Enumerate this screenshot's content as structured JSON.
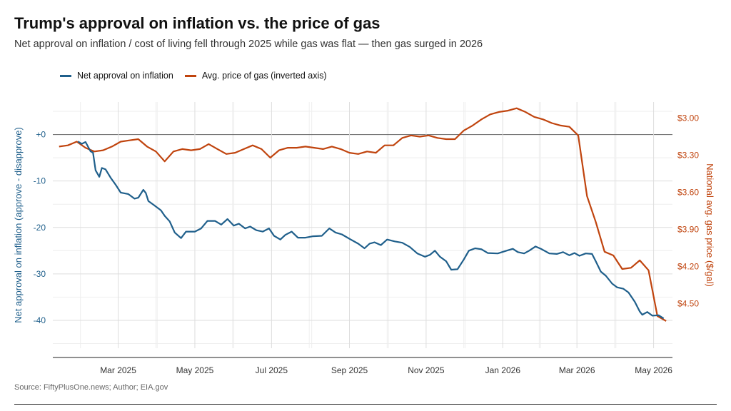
{
  "header": {
    "title": "Trump's approval on inflation vs. the price of gas",
    "subtitle": "Net approval on inflation / cost of living fell through 2025 while gas was flat — then gas surged in 2026"
  },
  "legend": {
    "items": [
      {
        "label": "Net approval on inflation",
        "color": "#1f5f8b"
      },
      {
        "label": "Avg. price of gas (inverted axis)",
        "color": "#c0440e"
      }
    ]
  },
  "footer": {
    "source": "Source: FiftyPlusOne.news; Author; EIA.gov"
  },
  "colors": {
    "approval": "#1f5f8b",
    "gas": "#c0440e",
    "grid": "#dddddd",
    "zero_line": "#666666"
  },
  "chart_data": {
    "type": "line",
    "title": "Trump's approval on inflation vs. the price of gas",
    "ylabel": "Net approval on inflation (approve - disapprove)",
    "y2label": "National avg. gas price ($/gal)",
    "xlim": [
      "2025-01-08",
      "2026-05-16"
    ],
    "ylim": [
      -46,
      7
    ],
    "y2lim": [
      2.87,
      4.86
    ],
    "y2_inverted": true,
    "x_ticks": [
      "2025-03-01",
      "2025-05-01",
      "2025-07-01",
      "2025-09-01",
      "2025-11-01",
      "2026-01-01",
      "2026-03-01",
      "2026-05-01"
    ],
    "x_tick_labels": [
      "Mar 2025",
      "May 2025",
      "Jul 2025",
      "Sep 2025",
      "Nov 2025",
      "Jan 2026",
      "Mar 2026",
      "May 2026"
    ],
    "y_ticks": [
      0,
      -10,
      -20,
      -30,
      -40
    ],
    "y_tick_labels": [
      "+0",
      "-10",
      "-20",
      "-30",
      "-40"
    ],
    "y2_ticks": [
      3.0,
      3.3,
      3.6,
      3.9,
      4.2,
      4.5
    ],
    "y2_tick_labels": [
      "$3.00",
      "$3.30",
      "$3.60",
      "$3.90",
      "$4.20",
      "$4.50"
    ],
    "grid": true,
    "legend_position": "top-left",
    "series": [
      {
        "name": "Net approval on inflation",
        "axis": "left",
        "points": [
          [
            "2025-01-28",
            -1.5
          ],
          [
            "2025-01-31",
            -2.0
          ],
          [
            "2025-02-03",
            -1.6
          ],
          [
            "2025-02-07",
            -3.6
          ],
          [
            "2025-02-09",
            -3.9
          ],
          [
            "2025-02-11",
            -7.7
          ],
          [
            "2025-02-14",
            -9.1
          ],
          [
            "2025-02-16",
            -7.2
          ],
          [
            "2025-02-19",
            -7.5
          ],
          [
            "2025-02-23",
            -9.3
          ],
          [
            "2025-02-27",
            -10.8
          ],
          [
            "2025-03-03",
            -12.5
          ],
          [
            "2025-03-09",
            -12.8
          ],
          [
            "2025-03-14",
            -13.8
          ],
          [
            "2025-03-17",
            -13.6
          ],
          [
            "2025-03-21",
            -11.9
          ],
          [
            "2025-03-23",
            -12.6
          ],
          [
            "2025-03-25",
            -14.3
          ],
          [
            "2025-03-29",
            -15.1
          ],
          [
            "2025-04-04",
            -16.3
          ],
          [
            "2025-04-07",
            -17.5
          ],
          [
            "2025-04-11",
            -18.7
          ],
          [
            "2025-04-15",
            -21.1
          ],
          [
            "2025-04-20",
            -22.3
          ],
          [
            "2025-04-24",
            -20.9
          ],
          [
            "2025-05-01",
            -20.9
          ],
          [
            "2025-05-06",
            -20.2
          ],
          [
            "2025-05-11",
            -18.6
          ],
          [
            "2025-05-17",
            -18.6
          ],
          [
            "2025-05-22",
            -19.4
          ],
          [
            "2025-05-27",
            -18.2
          ],
          [
            "2025-06-01",
            -19.6
          ],
          [
            "2025-06-05",
            -19.2
          ],
          [
            "2025-06-10",
            -20.2
          ],
          [
            "2025-06-14",
            -19.8
          ],
          [
            "2025-06-19",
            -20.6
          ],
          [
            "2025-06-24",
            -20.9
          ],
          [
            "2025-06-29",
            -20.2
          ],
          [
            "2025-07-03",
            -21.8
          ],
          [
            "2025-07-08",
            -22.6
          ],
          [
            "2025-07-12",
            -21.6
          ],
          [
            "2025-07-17",
            -20.9
          ],
          [
            "2025-07-22",
            -22.2
          ],
          [
            "2025-07-28",
            -22.2
          ],
          [
            "2025-08-03",
            -21.9
          ],
          [
            "2025-08-10",
            -21.8
          ],
          [
            "2025-08-16",
            -20.2
          ],
          [
            "2025-08-21",
            -21.1
          ],
          [
            "2025-08-26",
            -21.5
          ],
          [
            "2025-09-02",
            -22.6
          ],
          [
            "2025-09-08",
            -23.5
          ],
          [
            "2025-09-13",
            -24.5
          ],
          [
            "2025-09-17",
            -23.5
          ],
          [
            "2025-09-21",
            -23.2
          ],
          [
            "2025-09-26",
            -23.8
          ],
          [
            "2025-10-01",
            -22.6
          ],
          [
            "2025-10-07",
            -23.0
          ],
          [
            "2025-10-13",
            -23.3
          ],
          [
            "2025-10-19",
            -24.2
          ],
          [
            "2025-10-25",
            -25.6
          ],
          [
            "2025-10-31",
            -26.3
          ],
          [
            "2025-11-04",
            -25.9
          ],
          [
            "2025-11-08",
            -25.0
          ],
          [
            "2025-11-12",
            -26.3
          ],
          [
            "2025-11-17",
            -27.3
          ],
          [
            "2025-11-21",
            -29.1
          ],
          [
            "2025-11-26",
            -29.0
          ],
          [
            "2025-12-01",
            -26.9
          ],
          [
            "2025-12-05",
            -25.0
          ],
          [
            "2025-12-10",
            -24.5
          ],
          [
            "2025-12-15",
            -24.7
          ],
          [
            "2025-12-20",
            -25.5
          ],
          [
            "2025-12-28",
            -25.6
          ],
          [
            "2026-01-04",
            -25.0
          ],
          [
            "2026-01-09",
            -24.6
          ],
          [
            "2026-01-13",
            -25.3
          ],
          [
            "2026-01-18",
            -25.6
          ],
          [
            "2026-01-22",
            -25.0
          ],
          [
            "2026-01-27",
            -24.1
          ],
          [
            "2026-02-01",
            -24.7
          ],
          [
            "2026-02-07",
            -25.6
          ],
          [
            "2026-02-13",
            -25.7
          ],
          [
            "2026-02-18",
            -25.3
          ],
          [
            "2026-02-23",
            -26.0
          ],
          [
            "2026-02-27",
            -25.5
          ],
          [
            "2026-03-03",
            -26.1
          ],
          [
            "2026-03-08",
            -25.6
          ],
          [
            "2026-03-13",
            -25.7
          ],
          [
            "2026-03-16",
            -27.3
          ],
          [
            "2026-03-20",
            -29.5
          ],
          [
            "2026-03-24",
            -30.4
          ],
          [
            "2026-03-29",
            -32.1
          ],
          [
            "2026-04-02",
            -32.9
          ],
          [
            "2026-04-07",
            -33.2
          ],
          [
            "2026-04-11",
            -34.0
          ],
          [
            "2026-04-16",
            -36.0
          ],
          [
            "2026-04-20",
            -38.1
          ],
          [
            "2026-04-22",
            -38.8
          ],
          [
            "2026-04-26",
            -38.2
          ],
          [
            "2026-04-30",
            -39.0
          ],
          [
            "2026-05-05",
            -38.9
          ],
          [
            "2026-05-09",
            -39.6
          ]
        ]
      },
      {
        "name": "Avg. price of gas (inverted axis)",
        "axis": "right",
        "points": [
          [
            "2025-01-13",
            3.23
          ],
          [
            "2025-01-20",
            3.22
          ],
          [
            "2025-01-27",
            3.19
          ],
          [
            "2025-02-03",
            3.24
          ],
          [
            "2025-02-10",
            3.27
          ],
          [
            "2025-02-17",
            3.26
          ],
          [
            "2025-02-24",
            3.23
          ],
          [
            "2025-03-03",
            3.19
          ],
          [
            "2025-03-10",
            3.18
          ],
          [
            "2025-03-17",
            3.17
          ],
          [
            "2025-03-24",
            3.23
          ],
          [
            "2025-03-31",
            3.27
          ],
          [
            "2025-04-07",
            3.35
          ],
          [
            "2025-04-14",
            3.27
          ],
          [
            "2025-04-21",
            3.25
          ],
          [
            "2025-04-28",
            3.26
          ],
          [
            "2025-05-05",
            3.25
          ],
          [
            "2025-05-12",
            3.21
          ],
          [
            "2025-05-19",
            3.25
          ],
          [
            "2025-05-26",
            3.29
          ],
          [
            "2025-06-02",
            3.28
          ],
          [
            "2025-06-09",
            3.25
          ],
          [
            "2025-06-16",
            3.22
          ],
          [
            "2025-06-23",
            3.25
          ],
          [
            "2025-06-30",
            3.32
          ],
          [
            "2025-07-07",
            3.26
          ],
          [
            "2025-07-14",
            3.24
          ],
          [
            "2025-07-21",
            3.24
          ],
          [
            "2025-07-28",
            3.23
          ],
          [
            "2025-08-04",
            3.24
          ],
          [
            "2025-08-11",
            3.25
          ],
          [
            "2025-08-18",
            3.23
          ],
          [
            "2025-08-25",
            3.25
          ],
          [
            "2025-09-01",
            3.28
          ],
          [
            "2025-09-08",
            3.29
          ],
          [
            "2025-09-15",
            3.27
          ],
          [
            "2025-09-22",
            3.28
          ],
          [
            "2025-09-29",
            3.22
          ],
          [
            "2025-10-06",
            3.22
          ],
          [
            "2025-10-13",
            3.16
          ],
          [
            "2025-10-20",
            3.14
          ],
          [
            "2025-10-27",
            3.15
          ],
          [
            "2025-11-03",
            3.14
          ],
          [
            "2025-11-10",
            3.16
          ],
          [
            "2025-11-17",
            3.17
          ],
          [
            "2025-11-24",
            3.17
          ],
          [
            "2025-12-01",
            3.1
          ],
          [
            "2025-12-08",
            3.06
          ],
          [
            "2025-12-15",
            3.01
          ],
          [
            "2025-12-22",
            2.97
          ],
          [
            "2025-12-29",
            2.95
          ],
          [
            "2026-01-05",
            2.94
          ],
          [
            "2026-01-12",
            2.92
          ],
          [
            "2026-01-19",
            2.95
          ],
          [
            "2026-01-26",
            2.99
          ],
          [
            "2026-02-02",
            3.01
          ],
          [
            "2026-02-09",
            3.04
          ],
          [
            "2026-02-16",
            3.06
          ],
          [
            "2026-02-23",
            3.07
          ],
          [
            "2026-03-02",
            3.14
          ],
          [
            "2026-03-09",
            3.63
          ],
          [
            "2026-03-16",
            3.84
          ],
          [
            "2026-03-23",
            4.08
          ],
          [
            "2026-03-30",
            4.11
          ],
          [
            "2026-04-06",
            4.22
          ],
          [
            "2026-04-13",
            4.21
          ],
          [
            "2026-04-20",
            4.15
          ],
          [
            "2026-04-27",
            4.23
          ],
          [
            "2026-05-04",
            4.6
          ],
          [
            "2026-05-11",
            4.64
          ]
        ]
      }
    ]
  }
}
